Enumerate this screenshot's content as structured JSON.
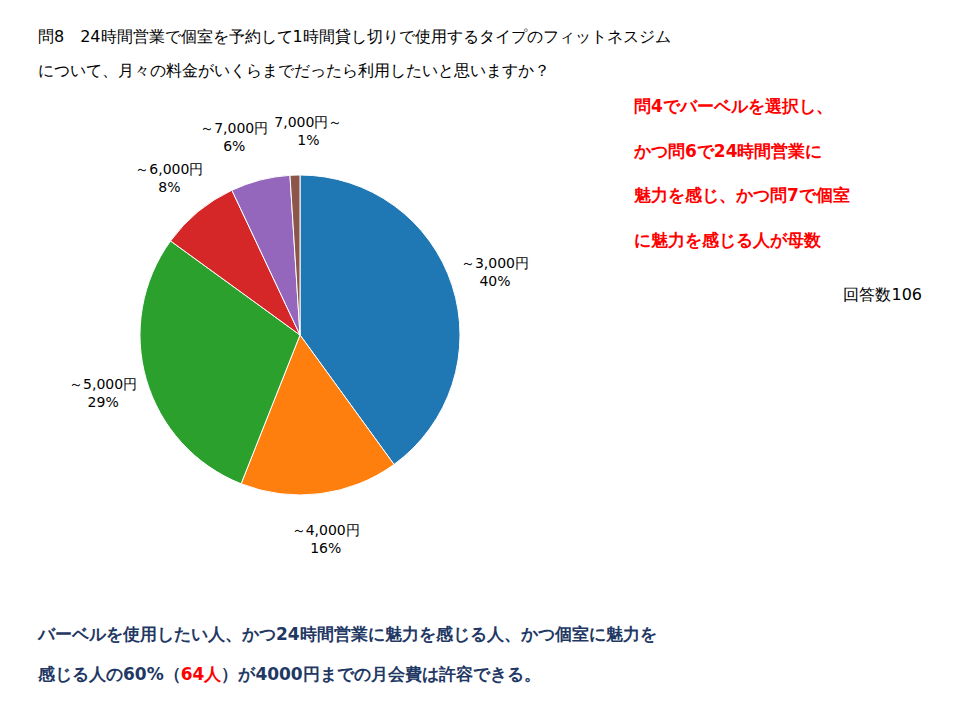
{
  "chart_data": {
    "type": "pie",
    "title": "問8　24時間営業で個室を予約して1時間貸し切りで使用するタイプのフィットネスジム",
    "subtitle": "について、月々の料金がいくらまでだったら利用したいと思いますか？",
    "categories": [
      "～3,000円",
      "～4,000円",
      "～5,000円",
      "～6,000円",
      "～7,000円",
      "7,000円～"
    ],
    "values": [
      40,
      16,
      29,
      8,
      6,
      1
    ],
    "value_labels": [
      "40%",
      "16%",
      "29%",
      "8%",
      "6%",
      "1%"
    ],
    "data_labels": true,
    "annotations": [
      {
        "lines": [
          [
            {
              "text": "問4でバーベルを選択し、",
              "color": "#FF0000"
            }
          ],
          [
            {
              "text": "かつ問6で24時間営業に",
              "color": "#FF0000"
            }
          ],
          [
            {
              "text": "魅力を感じ、かつ問7で個室",
              "color": "#FF0000"
            }
          ],
          [
            {
              "text": "に魅力を感じる人が母数",
              "color": "#FF0000"
            }
          ]
        ]
      },
      {
        "lines": [
          [
            {
              "text": "回答数106",
              "color": "#000000"
            }
          ]
        ]
      },
      {
        "lines": [
          [
            {
              "text": "バーベルを使用したい人、かつ24時間営業に魅力を感じる人、かつ個室に魅力を",
              "color": "#1F3864"
            }
          ],
          [
            {
              "text": "感じる人の60%（",
              "color": "#1F3864"
            },
            {
              "text": "64人",
              "color": "#FF0000"
            },
            {
              "text": "）が4000円までの月会費は許容できる。",
              "color": "#1F3864"
            }
          ]
        ]
      }
    ]
  }
}
